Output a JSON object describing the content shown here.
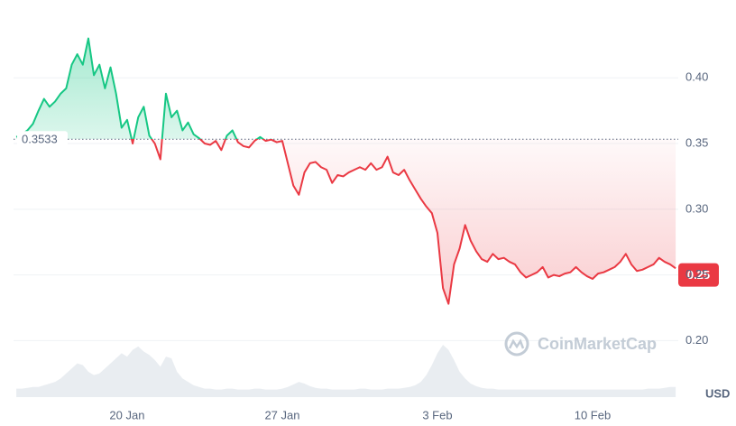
{
  "chart_data": {
    "type": "line",
    "categories": [
      null,
      null,
      null,
      null,
      null,
      null,
      null,
      null,
      null,
      null,
      null,
      null,
      null,
      null,
      null,
      null,
      null,
      null,
      null,
      null,
      "20 Jan",
      null,
      null,
      null,
      null,
      null,
      null,
      null,
      null,
      null,
      null,
      null,
      null,
      null,
      null,
      null,
      null,
      null,
      null,
      null,
      null,
      null,
      null,
      null,
      null,
      null,
      null,
      null,
      "27 Jan",
      null,
      null,
      null,
      null,
      null,
      null,
      null,
      null,
      null,
      null,
      null,
      null,
      null,
      null,
      null,
      null,
      null,
      null,
      null,
      null,
      null,
      null,
      null,
      null,
      null,
      null,
      null,
      "3 Feb",
      null,
      null,
      null,
      null,
      null,
      null,
      null,
      null,
      null,
      null,
      null,
      null,
      null,
      null,
      null,
      null,
      null,
      null,
      null,
      null,
      null,
      null,
      null,
      null,
      null,
      null,
      null,
      "10 Feb",
      null,
      null,
      null,
      null,
      null,
      null,
      null,
      null,
      null,
      null,
      null,
      null,
      null,
      null,
      null
    ],
    "values": [
      0.355,
      0.357,
      0.36,
      0.365,
      0.375,
      0.384,
      0.378,
      0.382,
      0.388,
      0.392,
      0.41,
      0.418,
      0.41,
      0.43,
      0.402,
      0.41,
      0.392,
      0.408,
      0.388,
      0.362,
      0.368,
      0.35,
      0.37,
      0.378,
      0.356,
      0.35,
      0.338,
      0.388,
      0.37,
      0.375,
      0.36,
      0.366,
      0.357,
      0.354,
      0.35,
      0.349,
      0.352,
      0.345,
      0.356,
      0.36,
      0.351,
      0.348,
      0.347,
      0.352,
      0.355,
      0.352,
      0.353,
      0.351,
      0.352,
      0.335,
      0.318,
      0.311,
      0.328,
      0.335,
      0.336,
      0.332,
      0.33,
      0.32,
      0.326,
      0.325,
      0.328,
      0.33,
      0.332,
      0.33,
      0.335,
      0.33,
      0.332,
      0.34,
      0.328,
      0.326,
      0.33,
      0.322,
      0.315,
      0.308,
      0.302,
      0.297,
      0.282,
      0.24,
      0.228,
      0.258,
      0.27,
      0.288,
      0.276,
      0.268,
      0.262,
      0.26,
      0.266,
      0.262,
      0.263,
      0.26,
      0.258,
      0.252,
      0.248,
      0.25,
      0.252,
      0.256,
      0.248,
      0.25,
      0.249,
      0.251,
      0.252,
      0.256,
      0.252,
      0.249,
      0.247,
      0.251,
      0.252,
      0.254,
      0.256,
      0.26,
      0.266,
      0.258,
      0.253,
      0.254,
      0.256,
      0.258,
      0.263,
      0.26,
      0.258,
      0.255
    ],
    "volume": [
      10,
      10,
      11,
      12,
      12,
      14,
      16,
      18,
      22,
      28,
      34,
      40,
      38,
      30,
      26,
      28,
      34,
      40,
      46,
      52,
      48,
      56,
      60,
      54,
      50,
      44,
      36,
      48,
      46,
      30,
      22,
      18,
      14,
      12,
      10,
      10,
      9,
      9,
      10,
      10,
      9,
      9,
      9,
      10,
      10,
      9,
      9,
      9,
      10,
      12,
      15,
      18,
      16,
      13,
      11,
      10,
      10,
      9,
      9,
      9,
      9,
      9,
      10,
      10,
      9,
      9,
      9,
      10,
      10,
      10,
      11,
      12,
      14,
      18,
      26,
      38,
      52,
      62,
      56,
      44,
      30,
      22,
      16,
      13,
      11,
      10,
      10,
      9,
      9,
      9,
      9,
      9,
      9,
      9,
      9,
      9,
      9,
      9,
      9,
      9,
      9,
      9,
      9,
      9,
      9,
      9,
      9,
      9,
      9,
      9,
      9,
      9,
      9,
      9,
      10,
      10,
      10,
      11,
      12,
      12
    ],
    "baseline": 0.3533,
    "current_price": 0.25,
    "currency": "USD",
    "watermark": "CoinMarketCap",
    "up_color": "#16c784",
    "down_color": "#ea3943",
    "ylim": [
      0.157,
      0.451
    ],
    "yticks": [
      {
        "value": 0.2,
        "label": "0.20"
      },
      0.25,
      {
        "value": 0.3,
        "label": "0.30"
      },
      0.35,
      {
        "value": 0.4,
        "label": "0.40"
      }
    ],
    "grid": true
  }
}
